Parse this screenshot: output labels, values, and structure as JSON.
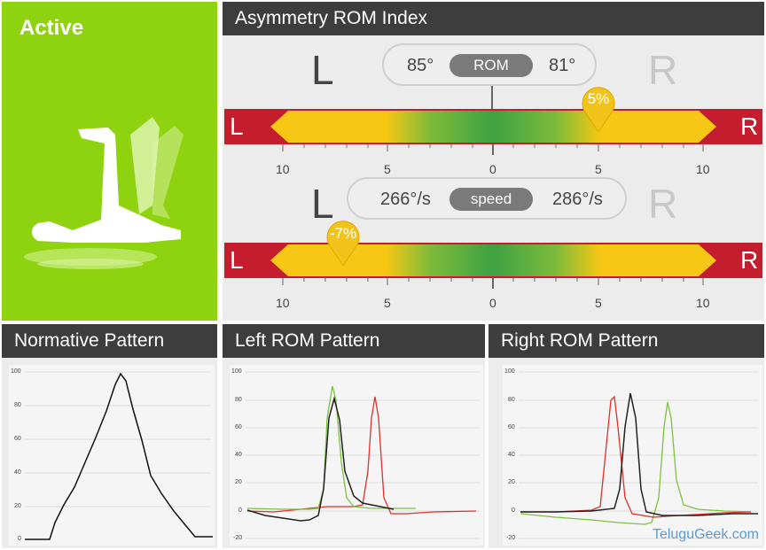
{
  "active_panel": {
    "label": "Active",
    "bg_color": "#8fd20f"
  },
  "asymmetry": {
    "title": "Asymmetry ROM Index",
    "rom_row": {
      "left_letter": "L",
      "right_letter": "R",
      "left_value": "85°",
      "tag": "ROM",
      "right_value": "81°",
      "marker_label": "5%",
      "bar_left_letter": "L",
      "bar_right_letter": "R",
      "tick_labels": [
        "10",
        "5",
        "0",
        "5",
        "10"
      ]
    },
    "speed_row": {
      "left_letter": "L",
      "right_letter": "R",
      "left_value": "266°/s",
      "tag": "speed",
      "right_value": "286°/s",
      "marker_label": "-7%",
      "bar_left_letter": "L",
      "bar_right_letter": "R",
      "tick_labels": [
        "10",
        "5",
        "0",
        "5",
        "10"
      ]
    }
  },
  "normative": {
    "title": "Normative Pattern",
    "y_ticks": [
      "100",
      "80",
      "60",
      "40",
      "20",
      "0"
    ]
  },
  "left_rom": {
    "title": "Left ROM Pattern",
    "y_ticks": [
      "100",
      "80",
      "60",
      "40",
      "20",
      "0",
      "-20"
    ]
  },
  "right_rom": {
    "title": "Right ROM Pattern",
    "y_ticks": [
      "100",
      "80",
      "60",
      "40",
      "20",
      "0",
      "-20"
    ]
  },
  "watermark": "TeluguGeek.com",
  "colors": {
    "black_series": "#222222",
    "red_series": "#e0302a",
    "green_series": "#7cc242"
  }
}
